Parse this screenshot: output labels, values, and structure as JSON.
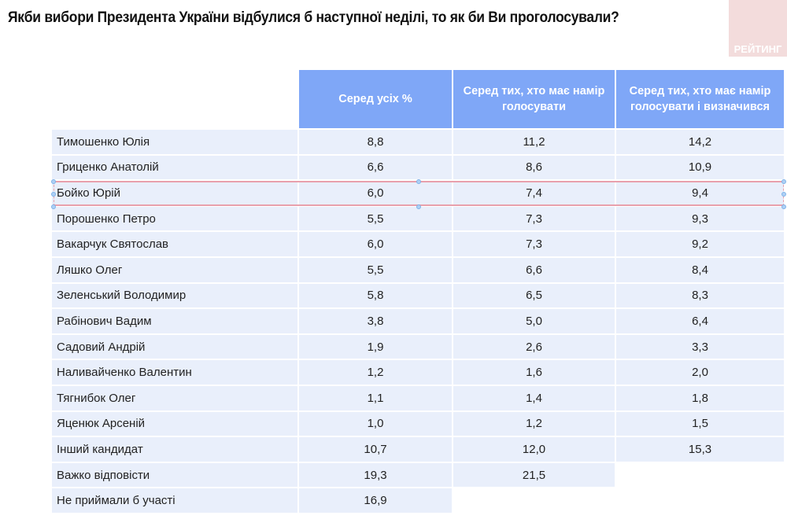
{
  "title": "Якби вибори Президента України відбулися б наступної неділі, то як би Ви проголосували?",
  "logo": "РЕЙТИНГ",
  "columns": [
    "Серед усіх %",
    "Серед тих, хто має намір голосувати",
    "Серед тих, хто має намір голосувати і визначився"
  ],
  "rows": [
    {
      "name": "Тимошенко Юлія",
      "v": [
        "8,8",
        "11,2",
        "14,2"
      ]
    },
    {
      "name": "Гриценко Анатолій",
      "v": [
        "6,6",
        "8,6",
        "10,9"
      ]
    },
    {
      "name": "Бойко Юрій",
      "v": [
        "6,0",
        "7,4",
        "9,4"
      ]
    },
    {
      "name": "Порошенко Петро",
      "v": [
        "5,5",
        "7,3",
        "9,3"
      ]
    },
    {
      "name": "Вакарчук Святослав",
      "v": [
        "6,0",
        "7,3",
        "9,2"
      ]
    },
    {
      "name": "Ляшко Олег",
      "v": [
        "5,5",
        "6,6",
        "8,4"
      ]
    },
    {
      "name": "Зеленський Володимир",
      "v": [
        "5,8",
        "6,5",
        "8,3"
      ]
    },
    {
      "name": "Рабінович Вадим",
      "v": [
        "3,8",
        "5,0",
        "6,4"
      ]
    },
    {
      "name": "Садовий Андрій",
      "v": [
        "1,9",
        "2,6",
        "3,3"
      ]
    },
    {
      "name": "Наливайченко Валентин",
      "v": [
        "1,2",
        "1,6",
        "2,0"
      ]
    },
    {
      "name": "Тягнибок Олег",
      "v": [
        "1,1",
        "1,4",
        "1,8"
      ]
    },
    {
      "name": "Яценюк Арсеній",
      "v": [
        "1,0",
        "1,2",
        "1,5"
      ]
    },
    {
      "name": "Інший кандидат",
      "v": [
        "10,7",
        "12,0",
        "15,3"
      ]
    },
    {
      "name": "Важко відповісти",
      "v": [
        "19,3",
        "21,5",
        null
      ]
    },
    {
      "name": "Не приймали б участі",
      "v": [
        "16,9",
        null,
        null
      ]
    }
  ],
  "selected_row": "Бойко Юрій",
  "colors": {
    "header": "#7fa7f7",
    "cell": "#e9effb",
    "selection": "#e8a0ac"
  }
}
